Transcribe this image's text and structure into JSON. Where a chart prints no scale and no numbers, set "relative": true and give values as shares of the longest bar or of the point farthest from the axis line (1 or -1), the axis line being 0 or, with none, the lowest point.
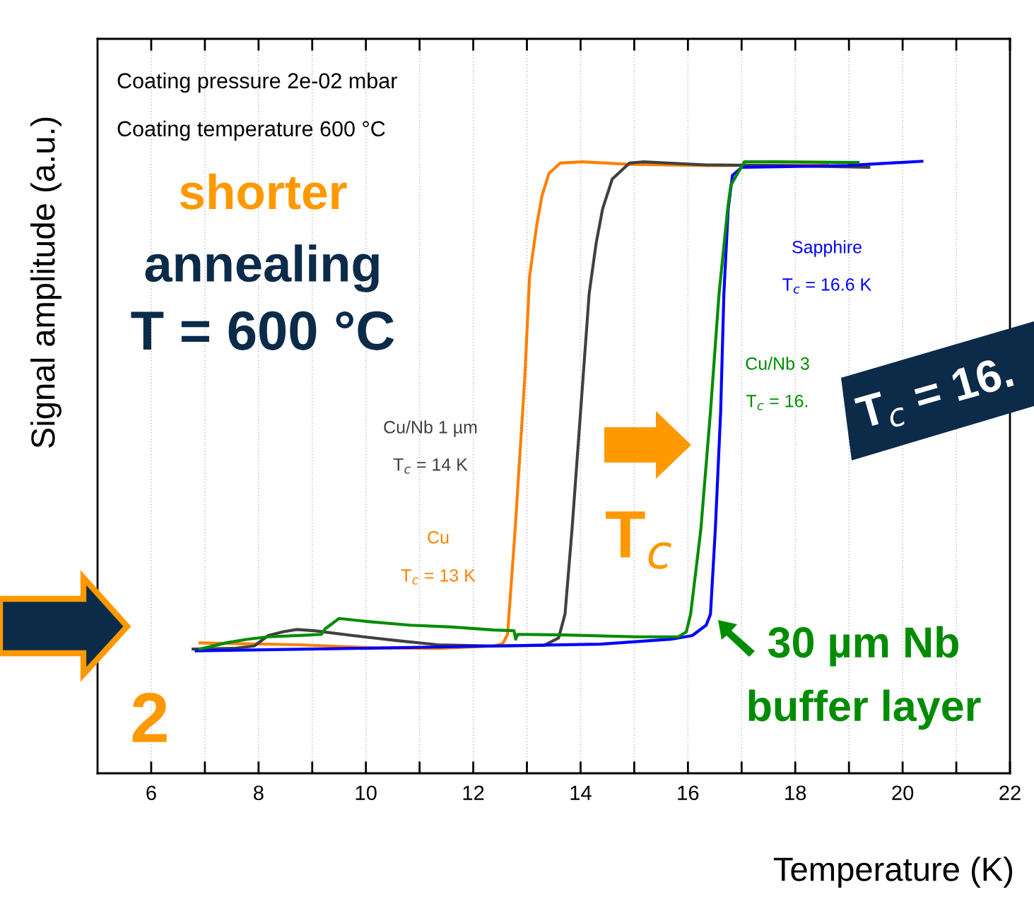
{
  "chart_data": {
    "type": "line",
    "xlabel": "Temperature (K)",
    "ylabel": "Signal amplitude (a.u.)",
    "relative": true,
    "grid": "x",
    "legend": false,
    "marker": "none",
    "line_style": "solid",
    "xlim": [
      5,
      22
    ],
    "xticks": [
      6,
      {
        "value": 7,
        "label": null
      },
      8,
      {
        "value": 9,
        "label": null
      },
      10,
      {
        "value": 11,
        "label": null
      },
      12,
      {
        "value": 13,
        "label": null
      },
      14,
      {
        "value": 15,
        "label": null
      },
      16,
      {
        "value": 17,
        "label": null
      },
      18,
      {
        "value": 19,
        "label": null
      },
      20,
      {
        "value": 21,
        "label": null
      },
      22
    ],
    "series": [
      {
        "name": "Cu",
        "color": "#ff8000",
        "x": [
          6.91,
          8.75,
          10.16,
          11.34,
          12.39,
          12.55,
          12.64,
          12.78,
          12.96,
          13.05,
          13.18,
          13.28,
          13.41,
          13.62,
          14.03,
          14.91,
          16.34,
          18.6
        ],
        "values": [
          0.213,
          0.21,
          0.205,
          0.204,
          0.208,
          0.212,
          0.227,
          0.398,
          0.646,
          0.812,
          0.894,
          0.943,
          0.98,
          0.997,
          0.999,
          0.995,
          0.993,
          0.994
        ]
      },
      {
        "name": "Cu/Nb 1 µm",
        "color": "#404040",
        "x": [
          6.78,
          7.53,
          7.92,
          8.18,
          8.45,
          8.71,
          9.04,
          9.76,
          10.55,
          11.34,
          12.39,
          13.32,
          13.59,
          13.71,
          13.84,
          14.0,
          14.16,
          14.29,
          14.41,
          14.59,
          14.91,
          15.16,
          16.34,
          17.66,
          19.37
        ],
        "values": [
          0.203,
          0.204,
          0.208,
          0.225,
          0.231,
          0.235,
          0.233,
          0.225,
          0.217,
          0.21,
          0.208,
          0.209,
          0.221,
          0.26,
          0.398,
          0.591,
          0.784,
          0.866,
          0.922,
          0.971,
          0.997,
          0.999,
          0.994,
          0.993,
          0.99
        ]
      },
      {
        "name": "Sapphire",
        "color": "#0000ff",
        "x": [
          6.84,
          9.76,
          12.39,
          14.37,
          15.68,
          16.08,
          16.34,
          16.42,
          16.51,
          16.61,
          16.67,
          16.75,
          16.83,
          17.0,
          17.66,
          18.97,
          20.36
        ],
        "values": [
          0.2,
          0.204,
          0.208,
          0.211,
          0.219,
          0.225,
          0.242,
          0.26,
          0.398,
          0.591,
          0.784,
          0.922,
          0.977,
          0.99,
          0.991,
          0.993,
          1.0
        ]
      },
      {
        "name": "Cu/Nb 3",
        "color": "#008c00",
        "x": [
          6.91,
          7.39,
          7.79,
          8.18,
          8.97,
          9.17,
          9.24,
          9.5,
          10.03,
          10.82,
          11.61,
          12.39,
          12.76,
          12.79,
          12.83,
          13.71,
          15.03,
          15.82,
          15.97,
          16.05,
          16.24,
          16.42,
          16.58,
          16.74,
          16.8,
          17.05,
          17.66,
          19.17
        ],
        "values": [
          0.203,
          0.213,
          0.219,
          0.223,
          0.226,
          0.227,
          0.236,
          0.253,
          0.248,
          0.242,
          0.239,
          0.234,
          0.233,
          0.219,
          0.227,
          0.226,
          0.223,
          0.223,
          0.231,
          0.26,
          0.398,
          0.591,
          0.784,
          0.922,
          0.961,
          0.999,
          0.999,
          0.998
        ]
      }
    ],
    "annotations": [
      "Coating pressure 2e-02 mbar",
      "Coating temperature 600 °C",
      "shorter",
      "annealing",
      "T = 600 °C",
      "T$_{c}$ = 13 K",
      "T$_{c}$ = 14 K",
      "T$_{c}$ = 16.6 K",
      "T$_{c}$ = 16.",
      "T$_{c}$",
      "30 µm Nb",
      "buffer layer",
      "2",
      "T$_{c}$ = 16."
    ]
  }
}
